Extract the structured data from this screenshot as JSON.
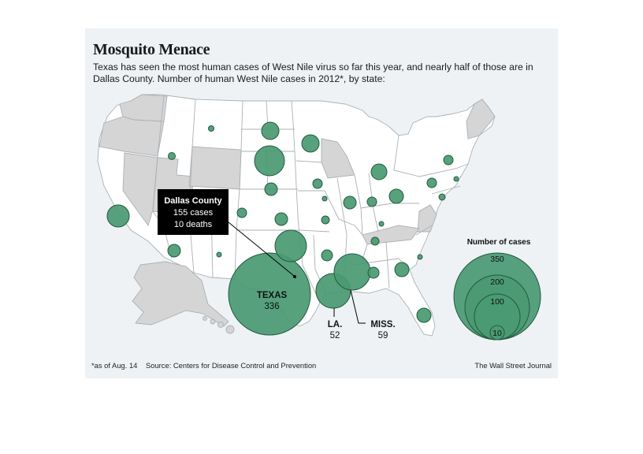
{
  "title": "Mosquito Menace",
  "subtitle": "Texas has seen the most human cases of West Nile virus so far this year, and nearly half of those are in Dallas County. Number of human West Nile cases in 2012*, by state:",
  "colors": {
    "bubble_fill": "#4a9a73",
    "bubble_stroke": "#225a3f",
    "state_fill": "#ffffff",
    "no_case_state_fill": "#d5d5d5",
    "background": "#eef2f5",
    "callout_box": "#000000"
  },
  "callout": {
    "region": "Dallas County",
    "cases": "155 cases",
    "deaths": "10 deaths"
  },
  "labeled_states": [
    {
      "name": "TEXAS",
      "value": "336"
    },
    {
      "name": "LA.",
      "value": "52"
    },
    {
      "name": "MISS.",
      "value": "59"
    }
  ],
  "legend": {
    "title": "Number of cases",
    "values": [
      "350",
      "200",
      "100",
      "10"
    ]
  },
  "footnote": "*as of Aug. 14",
  "source": "Source: Centers for Disease Control and Prevention",
  "credit": "The Wall Street Journal"
}
